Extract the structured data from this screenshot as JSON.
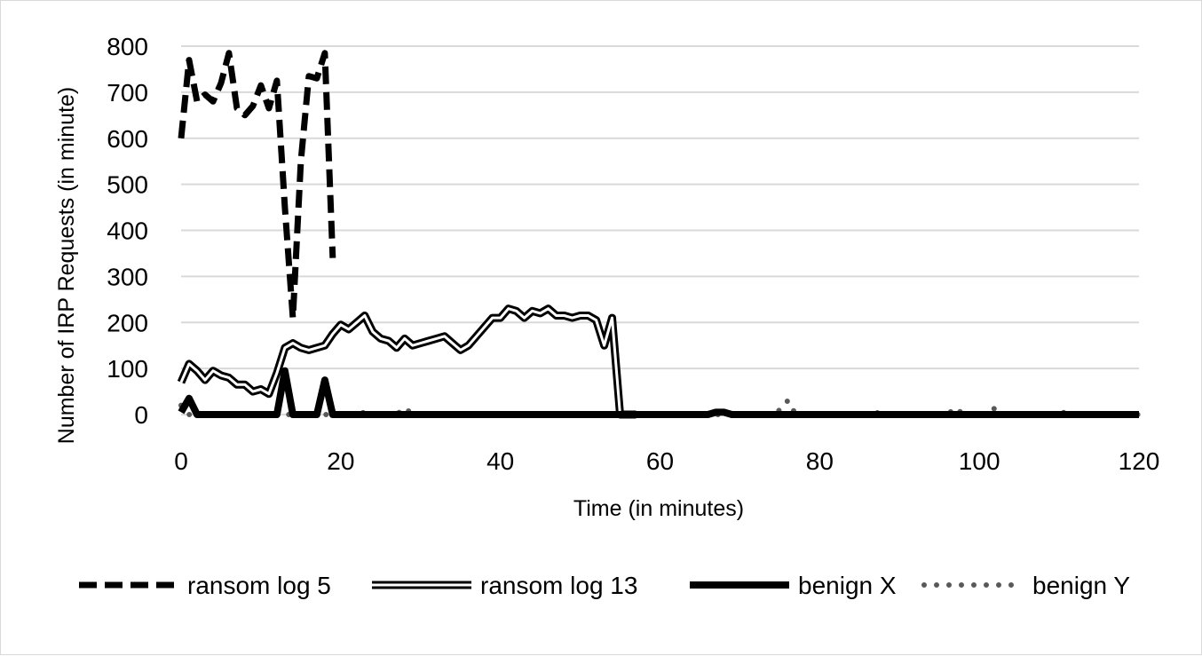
{
  "chart_data": {
    "type": "line",
    "title": "",
    "xlabel": "Time (in minutes)",
    "ylabel": "Number of IRP Requests (in minute)",
    "xlim": [
      0,
      120
    ],
    "ylim": [
      0,
      800
    ],
    "x_ticks": [
      0,
      20,
      40,
      60,
      80,
      100,
      120
    ],
    "y_ticks": [
      0,
      100,
      200,
      300,
      400,
      500,
      600,
      700,
      800
    ],
    "grid": "horizontal",
    "legend_position": "bottom",
    "series": [
      {
        "name": "ransom log 5",
        "style": "dashed",
        "color": "#000000",
        "x": [
          0,
          1,
          2,
          3,
          4,
          5,
          6,
          7,
          8,
          9,
          10,
          11,
          12,
          13,
          14,
          15,
          16,
          17,
          18,
          19
        ],
        "y": [
          600,
          770,
          680,
          695,
          680,
          720,
          785,
          665,
          650,
          670,
          715,
          665,
          725,
          450,
          210,
          550,
          735,
          730,
          785,
          340
        ]
      },
      {
        "name": "ransom log 13",
        "style": "double",
        "color": "#000000",
        "x": [
          0,
          1,
          2,
          3,
          4,
          5,
          6,
          7,
          8,
          9,
          10,
          11,
          12,
          13,
          14,
          15,
          16,
          17,
          18,
          19,
          20,
          21,
          22,
          23,
          24,
          25,
          26,
          27,
          28,
          29,
          30,
          31,
          32,
          33,
          34,
          35,
          36,
          37,
          38,
          39,
          40,
          41,
          42,
          43,
          44,
          45,
          46,
          47,
          48,
          49,
          50,
          51,
          52,
          53,
          54,
          55,
          56,
          57
        ],
        "y": [
          70,
          110,
          95,
          75,
          95,
          85,
          80,
          65,
          65,
          50,
          55,
          45,
          90,
          145,
          155,
          145,
          140,
          145,
          150,
          175,
          195,
          185,
          200,
          215,
          180,
          165,
          160,
          145,
          165,
          150,
          155,
          160,
          165,
          170,
          155,
          140,
          150,
          170,
          190,
          210,
          210,
          230,
          225,
          210,
          225,
          220,
          230,
          215,
          215,
          210,
          215,
          215,
          205,
          150,
          210,
          0,
          0,
          0
        ]
      },
      {
        "name": "benign X",
        "style": "solid",
        "color": "#000000",
        "x": [
          0,
          1,
          2,
          3,
          12,
          13,
          14,
          15,
          17,
          18,
          19,
          20,
          66,
          67,
          68,
          69,
          119,
          120
        ],
        "y": [
          5,
          35,
          0,
          0,
          0,
          95,
          0,
          0,
          0,
          75,
          0,
          0,
          0,
          5,
          5,
          0,
          0,
          0
        ]
      },
      {
        "name": "benign Y",
        "style": "dotted",
        "color": "#595959",
        "x": [
          0,
          1,
          2,
          3,
          4,
          5,
          6,
          7,
          8,
          9,
          10,
          11,
          12,
          13,
          14,
          15,
          16,
          17,
          18,
          19,
          20,
          21,
          22,
          23,
          24,
          25,
          26,
          27,
          28,
          29,
          30,
          31,
          32,
          33,
          34,
          35,
          36,
          37,
          38,
          39,
          40,
          41,
          42,
          43,
          44,
          45,
          46,
          47,
          48,
          49,
          50,
          51,
          52,
          53,
          54,
          55,
          56,
          57,
          58,
          59,
          60,
          61,
          62,
          63,
          64,
          65,
          66,
          67,
          68,
          69,
          70,
          71,
          72,
          73,
          74,
          75,
          76,
          77,
          78,
          79,
          80,
          81,
          82,
          83,
          84,
          85,
          86,
          87,
          88,
          89,
          90,
          91,
          92,
          93,
          94,
          95,
          96,
          97,
          98,
          99,
          100,
          101,
          102,
          103,
          104,
          105,
          106,
          107,
          108,
          109,
          110,
          111,
          112,
          113,
          114,
          115,
          116,
          117,
          118,
          119,
          120
        ],
        "y": [
          20,
          0,
          0,
          0,
          0,
          0,
          0,
          0,
          0,
          0,
          0,
          0,
          0,
          0,
          0,
          0,
          0,
          0,
          0,
          0,
          0,
          0,
          0,
          5,
          0,
          0,
          0,
          0,
          15,
          0,
          0,
          0,
          0,
          0,
          0,
          0,
          0,
          0,
          0,
          0,
          0,
          0,
          0,
          0,
          0,
          0,
          0,
          0,
          0,
          0,
          0,
          0,
          0,
          0,
          0,
          0,
          0,
          0,
          0,
          0,
          0,
          0,
          0,
          0,
          0,
          0,
          0,
          0,
          0,
          0,
          0,
          0,
          0,
          0,
          0,
          10,
          30,
          0,
          0,
          0,
          0,
          0,
          0,
          0,
          0,
          5,
          0,
          5,
          0,
          0,
          0,
          0,
          0,
          0,
          0,
          0,
          0,
          15,
          0,
          0,
          0,
          0,
          15,
          0,
          0,
          0,
          0,
          0,
          0,
          0,
          10,
          0,
          0,
          0,
          0,
          0,
          0,
          0,
          0,
          0,
          0
        ]
      }
    ]
  }
}
